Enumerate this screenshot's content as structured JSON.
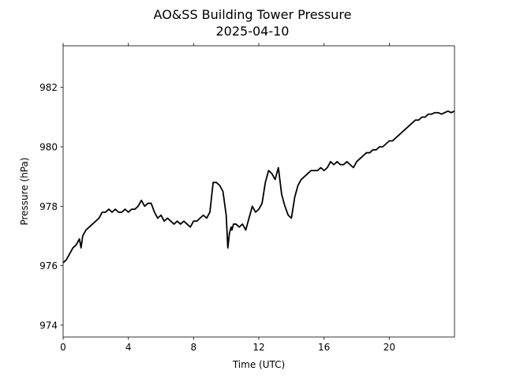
{
  "chart_data": {
    "type": "line",
    "title": "AO&SS Building Tower Pressure",
    "subtitle": "2025-04-10",
    "xlabel": "Time (UTC)",
    "ylabel": "Pressure (hPa)",
    "xlim": [
      0,
      24
    ],
    "ylim": [
      973.6,
      983.4
    ],
    "xticks": [
      0,
      4,
      8,
      12,
      16,
      20
    ],
    "xtick_labels": [
      "0",
      "4",
      "8",
      "12",
      "16",
      "20"
    ],
    "yticks": [
      974,
      976,
      978,
      980,
      982
    ],
    "ytick_labels": [
      "974",
      "976",
      "978",
      "980",
      "982"
    ],
    "grid": false,
    "line_color": "#000000",
    "series": [
      {
        "x": [
          0.0,
          0.2,
          0.4,
          0.6,
          0.8,
          1.0,
          1.1,
          1.2,
          1.4,
          1.6,
          1.8,
          2.0,
          2.2,
          2.4,
          2.6,
          2.8,
          3.0,
          3.2,
          3.4,
          3.6,
          3.8,
          4.0,
          4.2,
          4.4,
          4.6,
          4.8,
          5.0,
          5.2,
          5.4,
          5.6,
          5.8,
          6.0,
          6.2,
          6.4,
          6.6,
          6.8,
          7.0,
          7.2,
          7.4,
          7.6,
          7.8,
          8.0,
          8.2,
          8.4,
          8.6,
          8.8,
          9.0,
          9.2,
          9.4,
          9.6,
          9.8,
          10.0,
          10.1,
          10.2,
          10.3,
          10.35,
          10.45,
          10.6,
          10.8,
          11.0,
          11.2,
          11.4,
          11.6,
          11.8,
          12.0,
          12.2,
          12.4,
          12.6,
          12.8,
          13.0,
          13.2,
          13.4,
          13.6,
          13.8,
          14.0,
          14.2,
          14.4,
          14.6,
          14.8,
          15.0,
          15.2,
          15.4,
          15.6,
          15.8,
          16.0,
          16.2,
          16.4,
          16.6,
          16.8,
          17.0,
          17.2,
          17.4,
          17.6,
          17.8,
          18.0,
          18.2,
          18.4,
          18.6,
          18.8,
          19.0,
          19.2,
          19.4,
          19.6,
          19.8,
          20.0,
          20.2,
          20.4,
          20.6,
          20.8,
          21.0,
          21.2,
          21.4,
          21.6,
          21.8,
          22.0,
          22.2,
          22.4,
          22.6,
          22.8,
          23.0,
          23.2,
          23.4,
          23.6,
          23.8,
          24.0
        ],
        "y": [
          976.1,
          976.2,
          976.4,
          976.6,
          976.7,
          976.9,
          976.6,
          977.0,
          977.2,
          977.3,
          977.4,
          977.5,
          977.6,
          977.8,
          977.8,
          977.9,
          977.8,
          977.9,
          977.8,
          977.8,
          977.9,
          977.8,
          977.9,
          977.9,
          978.0,
          978.2,
          978.0,
          978.1,
          978.1,
          977.8,
          977.6,
          977.7,
          977.5,
          977.6,
          977.5,
          977.4,
          977.5,
          977.4,
          977.5,
          977.4,
          977.3,
          977.5,
          977.5,
          977.6,
          977.7,
          977.6,
          977.8,
          978.8,
          978.8,
          978.7,
          978.5,
          977.7,
          976.6,
          977.1,
          977.3,
          977.2,
          977.4,
          977.4,
          977.3,
          977.4,
          977.2,
          977.6,
          978.0,
          977.8,
          977.9,
          978.1,
          978.8,
          979.2,
          979.1,
          978.9,
          979.3,
          978.4,
          978.0,
          977.7,
          977.6,
          978.3,
          978.7,
          978.9,
          979.0,
          979.1,
          979.2,
          979.2,
          979.2,
          979.3,
          979.2,
          979.3,
          979.5,
          979.4,
          979.5,
          979.4,
          979.4,
          979.5,
          979.4,
          979.3,
          979.5,
          979.6,
          979.7,
          979.8,
          979.8,
          979.9,
          979.9,
          980.0,
          980.0,
          980.1,
          980.2,
          980.2,
          980.3,
          980.4,
          980.5,
          980.6,
          980.7,
          980.8,
          980.9,
          980.9,
          981.0,
          981.0,
          981.1,
          981.1,
          981.15,
          981.15,
          981.1,
          981.15,
          981.2,
          981.15,
          981.2
        ]
      }
    ]
  }
}
